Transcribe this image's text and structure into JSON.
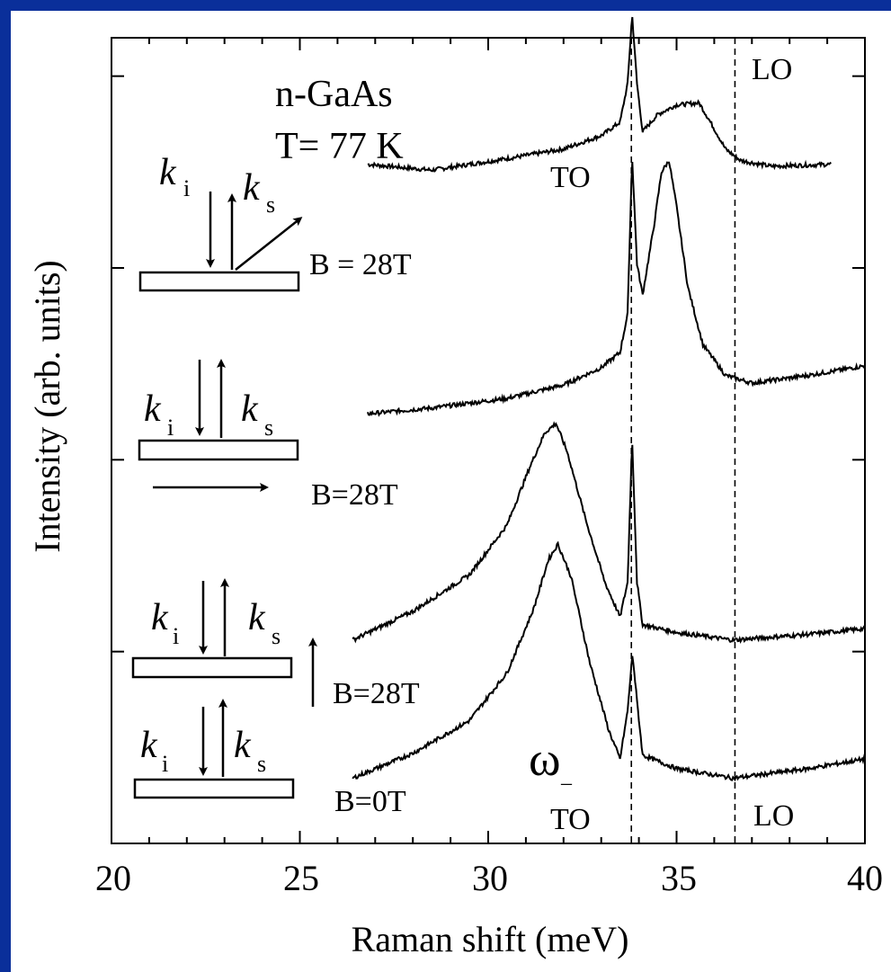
{
  "chart_data": {
    "type": "line",
    "xlabel": "Raman shift (meV)",
    "ylabel": "Intensity (arb. units)",
    "xlim": [
      20,
      40
    ],
    "xticks": [
      "20",
      "25",
      "30",
      "35",
      "40"
    ],
    "ylim": [
      0,
      4.2
    ],
    "yticks": [
      0,
      1,
      2,
      3,
      4
    ],
    "reference_lines": [
      {
        "x": 33.8,
        "style": "dashed"
      },
      {
        "x": 36.55,
        "style": "dashed"
      }
    ],
    "annotations": {
      "sample": "n-GaAs",
      "temperature": "T= 77 K",
      "to_top": "TO",
      "lo_top": "LO",
      "to_bottom": "TO",
      "lo_bottom": "LO",
      "omega": "ω",
      "omega_sub": "–"
    },
    "series": [
      {
        "label": "B = 28T",
        "ki": "k",
        "ki_sub": "i",
        "ks": "k",
        "ks_sub": "s",
        "baseline": 3.54,
        "x": [
          26.8,
          28.5,
          30.5,
          32.0,
          33.0,
          33.5,
          33.7,
          33.82,
          33.95,
          34.1,
          34.5,
          35.0,
          35.6,
          35.9,
          36.3,
          36.7,
          37.5,
          39.1
        ],
        "offset": [
          0.0,
          -0.03,
          0.03,
          0.08,
          0.15,
          0.22,
          0.42,
          0.78,
          0.42,
          0.17,
          0.26,
          0.31,
          0.32,
          0.22,
          0.08,
          0.02,
          -0.01,
          0.0
        ]
      },
      {
        "label": "B=28T",
        "ki": "k",
        "ki_sub": "i",
        "ks": "k",
        "ks_sub": "s",
        "baseline": 2.24,
        "x": [
          26.8,
          28.5,
          30.5,
          32.0,
          33.0,
          33.5,
          33.7,
          33.82,
          33.95,
          34.1,
          34.4,
          34.6,
          34.8,
          35.0,
          35.3,
          35.7,
          36.3,
          37.0,
          38.5,
          40.0
        ],
        "offset": [
          0.0,
          0.03,
          0.08,
          0.15,
          0.24,
          0.32,
          0.52,
          1.34,
          0.78,
          0.62,
          0.98,
          1.26,
          1.32,
          1.08,
          0.66,
          0.36,
          0.2,
          0.16,
          0.2,
          0.25
        ]
      },
      {
        "label": "B=28T",
        "ki": "k",
        "ki_sub": "i",
        "ks": "k",
        "ks_sub": "s",
        "baseline": 1.06,
        "x": [
          26.4,
          28.0,
          29.5,
          30.5,
          31.1,
          31.5,
          31.8,
          32.1,
          32.6,
          33.1,
          33.5,
          33.7,
          33.82,
          33.95,
          34.1,
          35.0,
          36.5,
          38.5,
          40.0
        ],
        "offset": [
          0.0,
          0.15,
          0.34,
          0.6,
          0.9,
          1.08,
          1.13,
          0.98,
          0.62,
          0.3,
          0.12,
          0.3,
          1.05,
          0.3,
          0.08,
          0.04,
          0.0,
          0.03,
          0.06
        ]
      },
      {
        "label": "B=0T",
        "ki": "k",
        "ki_sub": "i",
        "ks": "k",
        "ks_sub": "s",
        "baseline": 0.34,
        "x": [
          26.4,
          28.0,
          29.5,
          30.5,
          31.2,
          31.6,
          31.85,
          32.2,
          32.7,
          33.2,
          33.5,
          33.7,
          33.83,
          33.95,
          34.1,
          35.0,
          36.5,
          38.5,
          40.0
        ],
        "offset": [
          0.0,
          0.13,
          0.3,
          0.55,
          0.88,
          1.14,
          1.22,
          1.05,
          0.6,
          0.25,
          0.1,
          0.35,
          0.65,
          0.4,
          0.12,
          0.05,
          0.0,
          0.05,
          0.1
        ]
      }
    ]
  }
}
